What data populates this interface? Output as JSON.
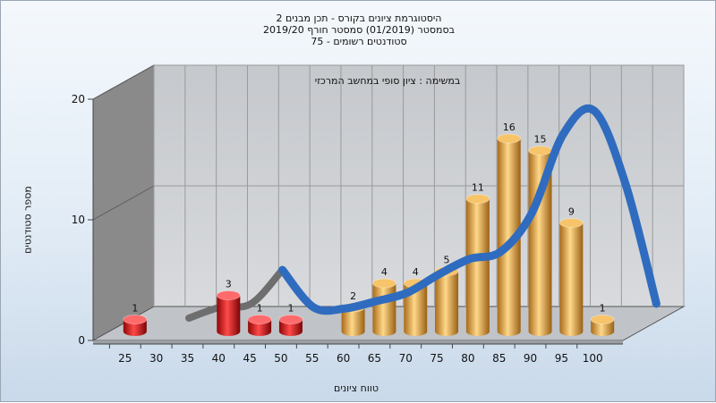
{
  "titles": {
    "line1": "היסטוגרמת ציונים בקורס - תכן מבנים 2",
    "line2": "בסמסטר  (01/2019)  סמסטר חורף 2019/20",
    "line3": "סטודנטים רשומים - 75"
  },
  "colors": {
    "fail_bar": "#d81c1c",
    "pass_bar": "#e8a840",
    "curve": "#2f6cbf",
    "curve_back": "#6e6e6e",
    "back_wall": "#cdd0d4",
    "side_wall": "#8a8a8a"
  },
  "chart_data": {
    "type": "bar",
    "annotation": "במשימה : ציון סופי במחשב המרכזי",
    "xlabel": "טווח ציונים",
    "ylabel": "מספר סטודנטים",
    "ylim": [
      0,
      20
    ],
    "yticks": [
      "0",
      "10",
      "20"
    ],
    "x_ticks": [
      "25",
      "30",
      "35",
      "40",
      "45",
      "50",
      "55",
      "60",
      "65",
      "70",
      "75",
      "80",
      "85",
      "90",
      "95",
      "100"
    ],
    "categories": [
      "25",
      "30",
      "35",
      "40",
      "45",
      "50",
      "55",
      "60",
      "65",
      "70",
      "75",
      "80",
      "85",
      "90",
      "95",
      "100"
    ],
    "values": [
      1,
      0,
      0,
      3,
      1,
      1,
      0,
      2,
      4,
      4,
      5,
      11,
      16,
      15,
      9,
      1
    ],
    "bar_kind": [
      "fail",
      "",
      "",
      "fail",
      "fail",
      "fail",
      "",
      "pass",
      "pass",
      "pass",
      "pass",
      "pass",
      "pass",
      "pass",
      "pass",
      "pass"
    ],
    "value_labels": [
      "1",
      "",
      "",
      "3",
      "1",
      "1",
      "",
      "2",
      "4",
      "4",
      "5",
      "11",
      "16",
      "15",
      "9",
      "1"
    ],
    "curve": {
      "x": [
        30,
        35,
        40,
        45,
        50,
        55,
        60,
        65,
        70,
        75,
        80,
        85,
        90,
        95,
        100,
        105
      ],
      "y": [
        0.3,
        1.2,
        1.5,
        4.3,
        1.2,
        1.1,
        1.7,
        2.4,
        3.9,
        5.2,
        5.8,
        9.0,
        15.5,
        17.5,
        11.5,
        1.5
      ]
    },
    "grid": true
  }
}
